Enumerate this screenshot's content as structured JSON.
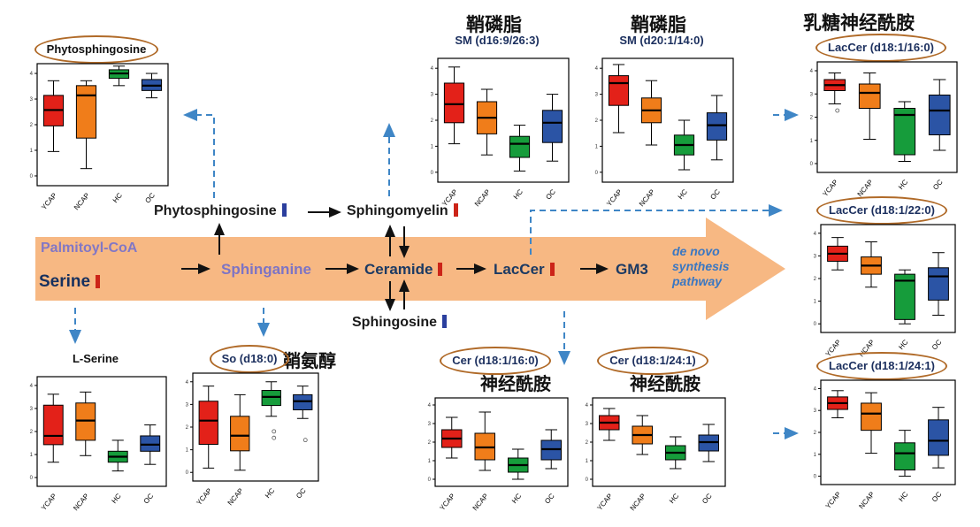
{
  "figure": {
    "pathway": {
      "palmitoyl_coa": "Palmitoyl-CoA",
      "serine": "Serine",
      "sphinganine": "Sphinganine",
      "ceramide": "Ceramide",
      "laccer": "LacCer",
      "gm3": "GM3",
      "phytosphingosine": "Phytosphingosine",
      "sphingomyelin": "Sphingomyelin",
      "sphingosine": "Sphingosine",
      "caption": [
        "de novo",
        "synthesis",
        "pathway"
      ]
    },
    "cn_labels": [
      "鞘磷脂",
      "鞘磷脂",
      "乳糖神经酰胺",
      "鞘氨醇",
      "神经酰胺",
      "神经酰胺"
    ]
  },
  "colors": {
    "box": [
      "#e32119",
      "#f07d1a",
      "#169c3b",
      "#2b54a5"
    ],
    "accent_red": "#cc2418",
    "accent_blue": "#2b3f9e",
    "arrow_fill": "#f5a868",
    "dashed_connector": "#3f86c6",
    "ellipse_outline": "#b06a28",
    "title_navy": "#1b2f5e"
  },
  "groups": [
    "YCAP",
    "NCAP",
    "HC",
    "OC"
  ],
  "chart_data": [
    {
      "type": "boxplot",
      "title": "Phytosphingosine",
      "circled": true,
      "categories": [
        "YCAP",
        "NCAP",
        "HC",
        "OC"
      ],
      "yticks": [
        "0",
        "1",
        "2",
        "3",
        "4"
      ],
      "ylim": [
        0,
        100
      ],
      "boxes": [
        [
          28,
          49,
          62,
          74,
          86
        ],
        [
          14,
          39,
          74,
          82,
          86
        ],
        [
          82,
          88,
          92,
          95,
          98
        ],
        [
          72,
          78,
          82,
          87,
          92
        ]
      ]
    },
    {
      "type": "boxplot",
      "title": "SM (d16:9/26:3)",
      "circled": false,
      "categories": [
        "YCAP",
        "NCAP",
        "HC",
        "OC"
      ],
      "yticks": [
        "0",
        "1",
        "2",
        "3",
        "4"
      ],
      "ylim": [
        0,
        100
      ],
      "boxes": [
        [
          31,
          48,
          63,
          80,
          93
        ],
        [
          22,
          39,
          52,
          65,
          75
        ],
        [
          9,
          20,
          31,
          37,
          46
        ],
        [
          17,
          32,
          48,
          58,
          71
        ]
      ]
    },
    {
      "type": "boxplot",
      "title": "SM (d20:1/14:0)",
      "circled": false,
      "categories": [
        "YCAP",
        "NCAP",
        "HC",
        "OC"
      ],
      "yticks": [
        "0",
        "1",
        "2",
        "3",
        "4"
      ],
      "ylim": [
        0,
        100
      ],
      "boxes": [
        [
          40,
          62,
          80,
          86,
          95
        ],
        [
          30,
          48,
          58,
          68,
          82
        ],
        [
          10,
          22,
          30,
          38,
          50
        ],
        [
          18,
          34,
          46,
          56,
          70
        ]
      ]
    },
    {
      "type": "boxplot",
      "title": "LacCer (d18:1/16:0)",
      "circled": true,
      "categories": [
        "YCAP",
        "NCAP",
        "HC",
        "OC"
      ],
      "yticks": [
        "0",
        "1",
        "2",
        "3",
        "4"
      ],
      "ylim": [
        0,
        100
      ],
      "boxes": [
        [
          62,
          74,
          79,
          84,
          90
        ],
        [
          30,
          58,
          72,
          80,
          90
        ],
        [
          10,
          16,
          52,
          58,
          64
        ],
        [
          20,
          34,
          56,
          70,
          84
        ]
      ],
      "outliers": [
        [
          56
        ],
        [],
        [],
        []
      ]
    },
    {
      "type": "boxplot",
      "title": "LacCer (d18:1/22:0)",
      "circled": true,
      "categories": [
        "YCAP",
        "NCAP",
        "HC",
        "OC"
      ],
      "yticks": [
        "0",
        "1",
        "2",
        "3",
        "4"
      ],
      "ylim": [
        0,
        100
      ],
      "boxes": [
        [
          58,
          66,
          73,
          80,
          88
        ],
        [
          42,
          54,
          62,
          70,
          84
        ],
        [
          8,
          12,
          48,
          54,
          58
        ],
        [
          16,
          30,
          52,
          60,
          74
        ]
      ]
    },
    {
      "type": "boxplot",
      "title": "LacCer (d18:1/24:1)",
      "circled": true,
      "categories": [
        "YCAP",
        "NCAP",
        "HC",
        "OC"
      ],
      "yticks": [
        "0",
        "1",
        "2",
        "3",
        "4"
      ],
      "ylim": [
        0,
        100
      ],
      "boxes": [
        [
          64,
          72,
          78,
          84,
          90
        ],
        [
          30,
          52,
          68,
          78,
          88
        ],
        [
          8,
          14,
          30,
          40,
          52
        ],
        [
          16,
          28,
          42,
          62,
          74
        ]
      ]
    },
    {
      "type": "boxplot",
      "title": "L-Serine",
      "circled": false,
      "categories": [
        "YCAP",
        "NCAP",
        "HC",
        "OC"
      ],
      "yticks": [
        "0",
        "1",
        "2",
        "3",
        "4"
      ],
      "ylim": [
        0,
        100
      ],
      "boxes": [
        [
          22,
          38,
          46,
          74,
          84
        ],
        [
          28,
          42,
          60,
          76,
          86
        ],
        [
          14,
          22,
          27,
          32,
          42
        ],
        [
          20,
          32,
          38,
          46,
          56
        ]
      ]
    },
    {
      "type": "boxplot",
      "title": "So (d18:0)",
      "circled": true,
      "categories": [
        "YCAP",
        "NCAP",
        "HC",
        "OC"
      ],
      "yticks": [
        "0",
        "1",
        "2",
        "3",
        "4"
      ],
      "ylim": [
        0,
        100
      ],
      "boxes": [
        [
          12,
          34,
          56,
          74,
          88
        ],
        [
          10,
          28,
          42,
          60,
          80
        ],
        [
          60,
          70,
          78,
          84,
          92
        ],
        [
          58,
          66,
          74,
          80,
          88
        ]
      ],
      "outliers": [
        [],
        [],
        [
          46,
          40
        ],
        [
          38
        ]
      ]
    },
    {
      "type": "boxplot",
      "title": "Cer (d18:1/16:0)",
      "circled": true,
      "categories": [
        "YCAP",
        "NCAP",
        "HC",
        "OC"
      ],
      "yticks": [
        "0",
        "1",
        "2",
        "3",
        "4"
      ],
      "ylim": [
        0,
        100
      ],
      "boxes": [
        [
          32,
          44,
          54,
          64,
          78
        ],
        [
          18,
          30,
          44,
          60,
          84
        ],
        [
          8,
          16,
          24,
          32,
          42
        ],
        [
          20,
          30,
          42,
          52,
          64
        ]
      ]
    },
    {
      "type": "boxplot",
      "title": "Cer (d18:1/24:1)",
      "circled": true,
      "categories": [
        "YCAP",
        "NCAP",
        "HC",
        "OC"
      ],
      "yticks": [
        "0",
        "1",
        "2",
        "3",
        "4"
      ],
      "ylim": [
        0,
        100
      ],
      "boxes": [
        [
          52,
          64,
          72,
          80,
          88
        ],
        [
          36,
          48,
          58,
          68,
          80
        ],
        [
          20,
          30,
          38,
          46,
          56
        ],
        [
          28,
          40,
          50,
          58,
          70
        ]
      ]
    }
  ]
}
